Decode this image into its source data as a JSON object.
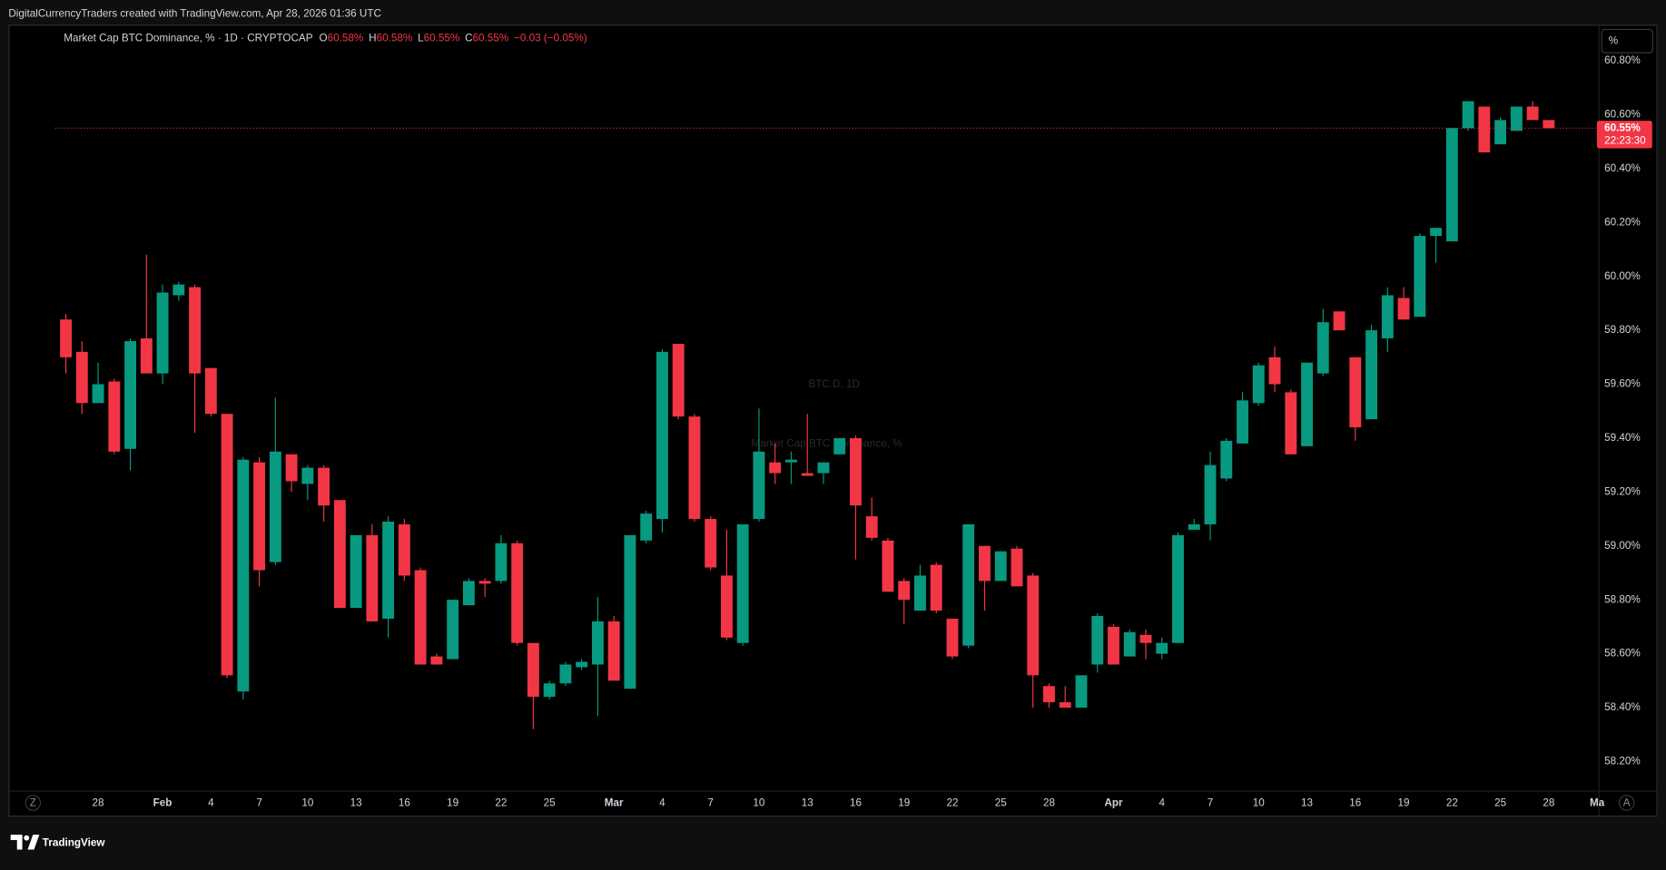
{
  "header": {
    "attribution": "DigitalCurrencyTraders created with TradingView.com, Apr 28, 2026 01:36 UTC"
  },
  "chart_data": {
    "type": "candlestick",
    "symbol_line": "Market Cap BTC Dominance, % · 1D · CRYPTOCAP",
    "ohlc_legend": [
      {
        "key": "O",
        "text": "60.58%"
      },
      {
        "key": "H",
        "text": "60.58%"
      },
      {
        "key": "L",
        "text": "60.55%"
      },
      {
        "key": "C",
        "text": "60.55%"
      }
    ],
    "change": "−0.03 (−0.05%)",
    "watermark": "BTC.D, 1D",
    "watermark_subtitle": "Market Cap BTC Dominance, %",
    "scale_button": "%",
    "zoom_button": "Z",
    "auto_button": "A",
    "up_color": "#089981",
    "down_color": "#f23645",
    "categories": [
      null,
      null,
      "28",
      null,
      null,
      null,
      "Feb",
      null,
      null,
      "4",
      null,
      null,
      "7",
      null,
      null,
      "10",
      null,
      null,
      "13",
      null,
      null,
      "16",
      null,
      null,
      "19",
      null,
      null,
      "22",
      null,
      null,
      "25",
      null,
      null,
      null,
      "Mar",
      null,
      null,
      "4",
      null,
      null,
      "7",
      null,
      null,
      "10",
      null,
      null,
      "13",
      null,
      null,
      "16",
      null,
      null,
      "19",
      null,
      null,
      "22",
      null,
      null,
      "25",
      null,
      null,
      "28",
      null,
      null,
      null,
      "Apr",
      null,
      null,
      "4",
      null,
      null,
      "7",
      null,
      null,
      "10",
      null,
      null,
      "13",
      null,
      null,
      "16",
      null,
      null,
      "19",
      null,
      null,
      "22",
      null,
      null,
      "25",
      null,
      null,
      "28",
      null,
      null,
      "Ma"
    ],
    "open": [
      59.84,
      59.72,
      59.53,
      59.61,
      59.36,
      59.77,
      59.64,
      59.93,
      59.96,
      59.66,
      59.49,
      58.46,
      59.31,
      58.94,
      59.34,
      59.23,
      59.29,
      59.17,
      58.77,
      59.04,
      58.73,
      59.08,
      58.91,
      58.59,
      58.58,
      58.78,
      58.87,
      58.87,
      59.01,
      58.64,
      58.44,
      58.49,
      58.55,
      58.56,
      58.72,
      58.47,
      59.02,
      59.1,
      59.75,
      59.48,
      59.1,
      58.89,
      58.64,
      59.1,
      59.31,
      59.31,
      59.27,
      59.27,
      59.34,
      59.4,
      59.11,
      59.02,
      58.87,
      58.76,
      58.93,
      58.73,
      58.63,
      59.0,
      58.87,
      58.99,
      58.89,
      58.48,
      58.42,
      58.4,
      58.56,
      58.7,
      58.59,
      58.67,
      58.6,
      58.64,
      59.06,
      59.08,
      59.25,
      59.38,
      59.53,
      59.7,
      59.57,
      59.37,
      59.64,
      59.87,
      59.7,
      59.47,
      59.77,
      59.92,
      59.85,
      60.15,
      60.13,
      60.55,
      60.63,
      60.49,
      60.54,
      60.63,
      60.58,
      null,
      null,
      null
    ],
    "high": [
      59.86,
      59.76,
      59.68,
      59.62,
      59.77,
      60.08,
      59.97,
      59.98,
      59.97,
      59.66,
      59.49,
      59.33,
      59.33,
      59.55,
      59.34,
      59.3,
      59.3,
      59.17,
      59.04,
      59.08,
      59.11,
      59.1,
      58.92,
      58.6,
      58.8,
      58.88,
      58.88,
      59.04,
      59.02,
      58.64,
      58.5,
      58.57,
      58.58,
      58.81,
      58.74,
      59.04,
      59.13,
      59.73,
      59.75,
      59.49,
      59.11,
      59.06,
      59.08,
      59.51,
      59.38,
      59.35,
      59.49,
      59.31,
      59.4,
      59.41,
      59.18,
      59.03,
      58.88,
      58.93,
      58.94,
      58.73,
      59.08,
      59.0,
      58.98,
      59.0,
      58.9,
      58.49,
      58.48,
      58.52,
      58.75,
      58.71,
      58.69,
      58.69,
      58.66,
      59.05,
      59.1,
      59.35,
      59.4,
      59.57,
      59.68,
      59.74,
      59.58,
      59.68,
      59.88,
      59.87,
      59.7,
      59.82,
      59.96,
      59.96,
      60.16,
      60.18,
      60.55,
      60.65,
      60.63,
      60.59,
      60.63,
      60.65,
      60.58,
      null,
      null,
      null
    ],
    "low": [
      59.64,
      59.49,
      59.53,
      59.34,
      59.28,
      59.64,
      59.6,
      59.91,
      59.42,
      59.48,
      58.51,
      58.43,
      58.85,
      58.93,
      59.2,
      59.17,
      59.09,
      58.77,
      58.77,
      58.72,
      58.66,
      58.87,
      58.56,
      58.56,
      58.58,
      58.78,
      58.81,
      58.86,
      58.63,
      58.32,
      58.43,
      58.48,
      58.54,
      58.37,
      58.5,
      58.47,
      59.01,
      59.05,
      59.47,
      59.09,
      58.91,
      58.65,
      58.63,
      59.09,
      59.23,
      59.23,
      59.26,
      59.23,
      59.34,
      58.95,
      59.02,
      58.83,
      58.71,
      58.76,
      58.75,
      58.58,
      58.62,
      58.76,
      58.87,
      58.85,
      58.4,
      58.4,
      58.4,
      58.4,
      58.53,
      58.56,
      58.59,
      58.58,
      58.58,
      58.64,
      59.06,
      59.02,
      59.24,
      59.38,
      59.52,
      59.57,
      59.34,
      59.37,
      59.63,
      59.8,
      59.39,
      59.47,
      59.72,
      59.84,
      59.85,
      60.05,
      60.13,
      60.54,
      60.46,
      60.49,
      60.54,
      60.58,
      60.55,
      null,
      null,
      null
    ],
    "close": [
      59.7,
      59.53,
      59.6,
      59.35,
      59.76,
      59.64,
      59.94,
      59.97,
      59.64,
      59.49,
      58.52,
      59.32,
      58.91,
      59.35,
      59.24,
      59.29,
      59.15,
      58.77,
      59.04,
      58.72,
      59.09,
      58.89,
      58.56,
      58.56,
      58.8,
      58.87,
      58.86,
      59.01,
      58.64,
      58.44,
      58.49,
      58.56,
      58.57,
      58.72,
      58.5,
      59.04,
      59.12,
      59.72,
      59.48,
      59.1,
      58.92,
      58.66,
      59.08,
      59.35,
      59.27,
      59.32,
      59.26,
      59.31,
      59.4,
      59.15,
      59.03,
      58.83,
      58.8,
      58.89,
      58.76,
      58.59,
      59.08,
      58.87,
      58.98,
      58.85,
      58.52,
      58.42,
      58.4,
      58.52,
      58.74,
      58.56,
      58.68,
      58.64,
      58.64,
      59.04,
      59.08,
      59.3,
      59.39,
      59.54,
      59.67,
      59.6,
      59.34,
      59.68,
      59.83,
      59.8,
      59.44,
      59.8,
      59.93,
      59.84,
      60.15,
      60.18,
      60.55,
      60.65,
      60.46,
      60.58,
      60.63,
      60.58,
      60.55,
      null,
      null,
      null
    ],
    "ylim": [
      58.09,
      60.93
    ],
    "yticks": [
      {
        "value": 58.2,
        "label": "58.20%"
      },
      {
        "value": 58.4,
        "label": "58.40%"
      },
      {
        "value": 58.6,
        "label": "58.60%"
      },
      {
        "value": 58.8,
        "label": "58.80%"
      },
      {
        "value": 59.0,
        "label": "59.00%"
      },
      {
        "value": 59.2,
        "label": "59.20%"
      },
      {
        "value": 59.4,
        "label": "59.40%"
      },
      {
        "value": 59.6,
        "label": "59.60%"
      },
      {
        "value": 59.8,
        "label": "59.80%"
      },
      {
        "value": 60.0,
        "label": "60.00%"
      },
      {
        "value": 60.2,
        "label": "60.20%"
      },
      {
        "value": 60.4,
        "label": "60.40%"
      },
      {
        "value": 60.6,
        "label": "60.60%"
      },
      {
        "value": 60.8,
        "label": "60.80%"
      }
    ],
    "last_price": {
      "value": 60.55,
      "label": "60.55%",
      "countdown": "22:23:30"
    }
  },
  "footer": {
    "brand": "TradingView"
  }
}
